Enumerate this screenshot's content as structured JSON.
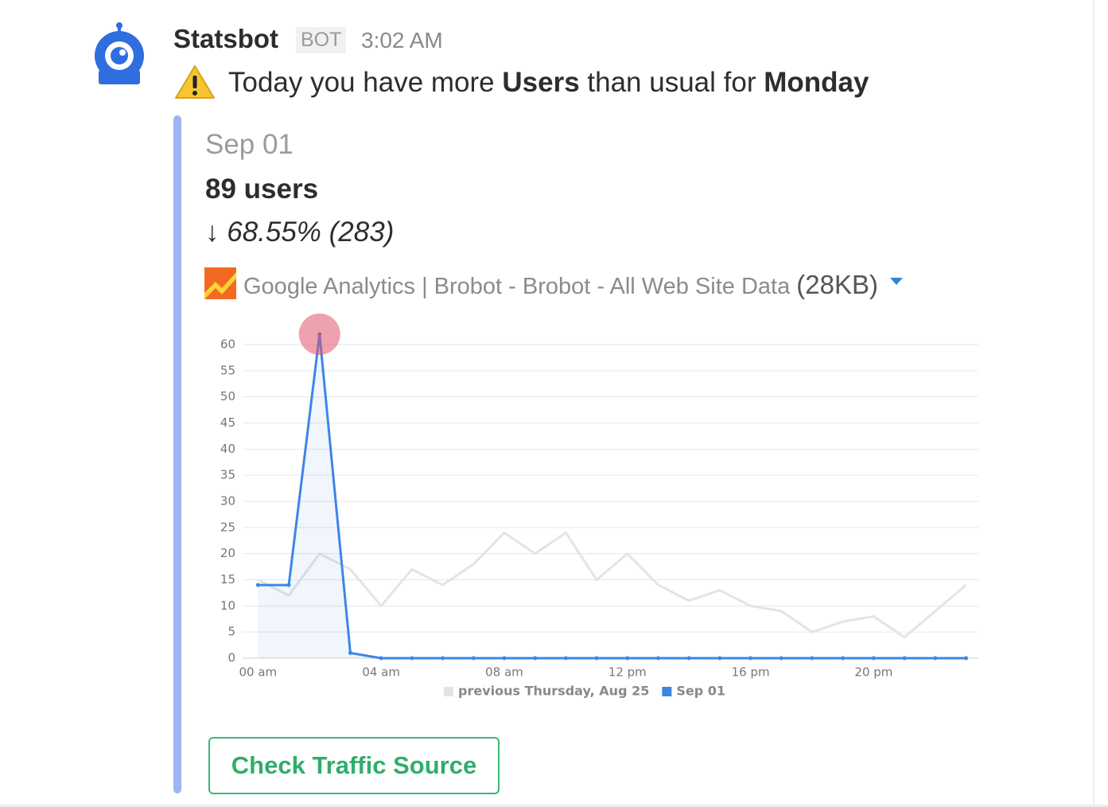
{
  "message": {
    "author": "Statsbot",
    "badge": "BOT",
    "time": "3:02 AM",
    "text_parts": [
      "Today you have more ",
      "Users",
      " than usual for ",
      "Monday"
    ]
  },
  "attachment": {
    "date": "Sep 01",
    "users": "89 users",
    "change": "↓ 68.55% (283)",
    "file_name": "Google Analytics | Brobot - Brobot - All Web Site Data",
    "file_size": "(28KB)",
    "button": "Check Traffic Source"
  },
  "chart_data": {
    "type": "line",
    "x": [
      0,
      1,
      2,
      3,
      4,
      5,
      6,
      7,
      8,
      9,
      10,
      11,
      12,
      13,
      14,
      15,
      16,
      17,
      18,
      19,
      20,
      21,
      22,
      23
    ],
    "xlim": [
      -0.5,
      23.4
    ],
    "xticks": [
      {
        "value": 0,
        "label": "00 am"
      },
      {
        "value": 4,
        "label": "04 am"
      },
      {
        "value": 8,
        "label": "08 am"
      },
      {
        "value": 12,
        "label": "12 pm"
      },
      {
        "value": 16,
        "label": "16 pm"
      },
      {
        "value": 20,
        "label": "20 pm"
      }
    ],
    "ylim": [
      0,
      60
    ],
    "yticks": [
      0,
      5,
      10,
      15,
      20,
      25,
      30,
      35,
      40,
      45,
      50,
      55,
      60
    ],
    "grid": true,
    "legend": "bottom",
    "series": [
      {
        "name": "previous Thursday, Aug 25",
        "color": "#e4e4e4",
        "values": [
          15,
          12,
          20,
          17,
          10,
          17,
          14,
          18,
          24,
          20,
          24,
          15,
          20,
          14,
          11,
          13,
          10,
          9,
          5,
          7,
          8,
          4,
          9,
          14
        ]
      },
      {
        "name": "Sep 01",
        "color": "#3d86e6",
        "values": [
          14,
          14,
          62,
          1,
          0,
          0,
          0,
          0,
          0,
          0,
          0,
          0,
          0,
          0,
          0,
          0,
          0,
          0,
          0,
          0,
          0,
          0,
          0,
          0
        ]
      }
    ]
  }
}
